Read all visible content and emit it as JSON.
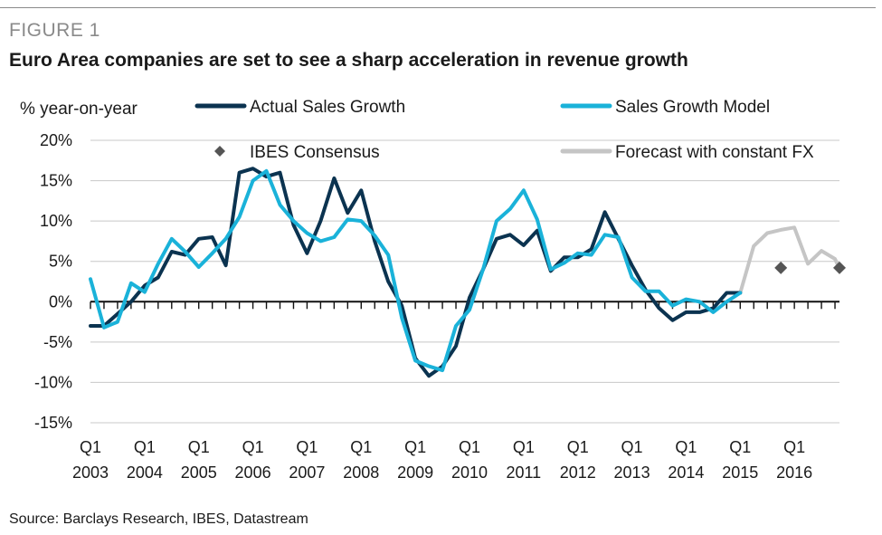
{
  "figure_label": "FIGURE 1",
  "title": "Euro Area companies are set to see a sharp acceleration in revenue growth",
  "source": "Source: Barclays Research, IBES, Datastream",
  "colors": {
    "actual": "#0b3350",
    "model": "#1ab2d9",
    "forecast": "#c5c5c5",
    "ibes": "#555555",
    "grid": "#c8c8c8",
    "axis": "#111111"
  },
  "chart_data": {
    "type": "line",
    "ylabel": "% year-on-year",
    "ylim": [
      -15,
      20
    ],
    "yticks": [
      20,
      15,
      10,
      5,
      0,
      -5,
      -10,
      -15
    ],
    "ytick_labels": [
      "20%",
      "15%",
      "10%",
      "5%",
      "0%",
      "-5%",
      "-10%",
      "-15%"
    ],
    "xlim": [
      2003.0,
      2016.833
    ],
    "xtick_years": [
      2003,
      2004,
      2005,
      2006,
      2007,
      2008,
      2009,
      2010,
      2011,
      2012,
      2013,
      2014,
      2015,
      2016
    ],
    "xtick_top_labels": [
      "Q1",
      "Q1",
      "Q1",
      "Q1",
      "Q1",
      "Q1",
      "Q1",
      "Q1",
      "Q1",
      "Q1",
      "Q1",
      "Q1",
      "Q1",
      "Q1"
    ],
    "xtick_bottom_labels": [
      "2003",
      "2004",
      "2005",
      "2006",
      "2007",
      "2008",
      "2009",
      "2010",
      "2011",
      "2012",
      "2013",
      "2014",
      "2015",
      ""
    ],
    "grid": true,
    "legend": [
      {
        "label": "Actual Sales Growth",
        "series": "actual",
        "marker": "line"
      },
      {
        "label": "Sales Growth Model",
        "series": "model",
        "marker": "line"
      },
      {
        "label": "IBES Consensus",
        "series": "ibes",
        "marker": "diamond"
      },
      {
        "label": "Forecast with constant FX",
        "series": "forecast",
        "marker": "line"
      }
    ],
    "series": [
      {
        "name": "Actual Sales Growth",
        "key": "actual",
        "x": [
          2003.0,
          2003.25,
          2003.5,
          2003.75,
          2004.0,
          2004.25,
          2004.5,
          2004.75,
          2005.0,
          2005.25,
          2005.5,
          2005.75,
          2006.0,
          2006.25,
          2006.5,
          2006.75,
          2007.0,
          2007.25,
          2007.5,
          2007.75,
          2008.0,
          2008.25,
          2008.5,
          2008.75,
          2009.0,
          2009.25,
          2009.5,
          2009.75,
          2010.0,
          2010.25,
          2010.5,
          2010.75,
          2011.0,
          2011.25,
          2011.5,
          2011.75,
          2012.0,
          2012.25,
          2012.5,
          2012.75,
          2013.0,
          2013.25,
          2013.5,
          2013.75,
          2014.0,
          2014.25,
          2014.5,
          2014.75,
          2015.0
        ],
        "y": [
          -3.0,
          -3.0,
          -1.5,
          0.0,
          2.0,
          3.0,
          6.2,
          5.8,
          7.8,
          8.0,
          4.5,
          16.0,
          16.5,
          15.5,
          16.0,
          9.5,
          6.0,
          10.0,
          15.3,
          11.0,
          13.8,
          7.5,
          2.5,
          -0.5,
          -7.0,
          -9.2,
          -8.0,
          -5.5,
          0.5,
          4.0,
          7.8,
          8.3,
          7.0,
          8.8,
          3.8,
          5.5,
          5.5,
          6.5,
          11.1,
          7.8,
          4.5,
          1.5,
          -0.8,
          -2.3,
          -1.3,
          -1.3,
          -0.8,
          1.1,
          1.1
        ]
      },
      {
        "name": "Sales Growth Model",
        "key": "model",
        "x": [
          2003.0,
          2003.25,
          2003.5,
          2003.75,
          2004.0,
          2004.25,
          2004.5,
          2004.75,
          2005.0,
          2005.25,
          2005.5,
          2005.75,
          2006.0,
          2006.25,
          2006.5,
          2006.75,
          2007.0,
          2007.25,
          2007.5,
          2007.75,
          2008.0,
          2008.25,
          2008.5,
          2008.75,
          2009.0,
          2009.25,
          2009.5,
          2009.75,
          2010.0,
          2010.25,
          2010.5,
          2010.75,
          2011.0,
          2011.25,
          2011.5,
          2011.75,
          2012.0,
          2012.25,
          2012.5,
          2012.75,
          2013.0,
          2013.25,
          2013.5,
          2013.75,
          2014.0,
          2014.25,
          2014.5,
          2014.75,
          2015.0
        ],
        "y": [
          2.8,
          -3.2,
          -2.5,
          2.3,
          1.2,
          4.7,
          7.8,
          6.2,
          4.3,
          6.0,
          7.8,
          10.5,
          15.0,
          16.2,
          12.0,
          10.0,
          8.5,
          7.5,
          8.0,
          10.2,
          10.0,
          8.2,
          5.8,
          -2.0,
          -7.3,
          -8.0,
          -8.5,
          -3.0,
          -1.0,
          4.0,
          10.0,
          11.5,
          13.8,
          10.2,
          4.0,
          4.8,
          6.0,
          5.8,
          8.3,
          8.0,
          3.0,
          1.3,
          1.3,
          -0.5,
          0.3,
          0.0,
          -1.3,
          0.0,
          1.1
        ]
      },
      {
        "name": "Forecast with constant FX",
        "key": "forecast",
        "x": [
          2015.0,
          2015.25,
          2015.5,
          2015.75,
          2016.0,
          2016.25,
          2016.5,
          2016.75,
          2016.833
        ],
        "y": [
          1.1,
          6.9,
          8.5,
          8.9,
          9.2,
          4.7,
          6.3,
          5.3,
          4.1
        ]
      },
      {
        "name": "IBES Consensus",
        "key": "ibes",
        "x": [
          2015.75,
          2016.833
        ],
        "y": [
          4.2,
          4.2
        ]
      }
    ]
  }
}
